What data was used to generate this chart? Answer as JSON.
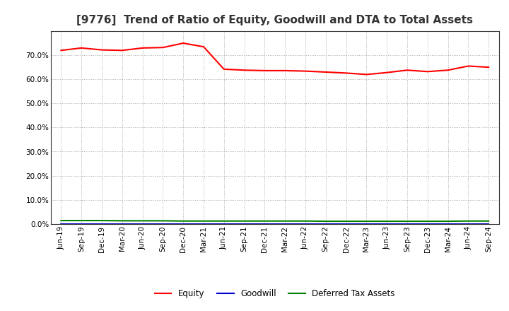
{
  "title": "[9776]  Trend of Ratio of Equity, Goodwill and DTA to Total Assets",
  "x_labels": [
    "Jun-19",
    "Sep-19",
    "Dec-19",
    "Mar-20",
    "Jun-20",
    "Sep-20",
    "Dec-20",
    "Mar-21",
    "Jun-21",
    "Sep-21",
    "Dec-21",
    "Mar-22",
    "Jun-22",
    "Sep-22",
    "Dec-22",
    "Mar-23",
    "Jun-23",
    "Sep-23",
    "Dec-23",
    "Mar-24",
    "Jun-24",
    "Sep-24"
  ],
  "equity": [
    0.72,
    0.73,
    0.722,
    0.72,
    0.73,
    0.732,
    0.75,
    0.735,
    0.642,
    0.638,
    0.636,
    0.636,
    0.634,
    0.63,
    0.626,
    0.62,
    0.628,
    0.638,
    0.632,
    0.638,
    0.655,
    0.65
  ],
  "goodwill": [
    0.0,
    0.0,
    0.0,
    0.0,
    0.0,
    0.0,
    0.0,
    0.0,
    0.0,
    0.0,
    0.0,
    0.0,
    0.0,
    0.0,
    0.0,
    0.0,
    0.0,
    0.0,
    0.0,
    0.0,
    0.0,
    0.0
  ],
  "dta": [
    0.014,
    0.014,
    0.014,
    0.013,
    0.013,
    0.013,
    0.012,
    0.012,
    0.012,
    0.012,
    0.012,
    0.012,
    0.012,
    0.011,
    0.011,
    0.011,
    0.011,
    0.011,
    0.011,
    0.011,
    0.012,
    0.012
  ],
  "equity_color": "#ff0000",
  "goodwill_color": "#0000cc",
  "dta_color": "#008000",
  "ylim": [
    0.0,
    0.8
  ],
  "yticks": [
    0.0,
    0.1,
    0.2,
    0.3,
    0.4,
    0.5,
    0.6,
    0.7
  ],
  "background_color": "#ffffff",
  "grid_color": "#aaaaaa",
  "title_fontsize": 11,
  "tick_fontsize": 7.5,
  "legend_fontsize": 8.5
}
